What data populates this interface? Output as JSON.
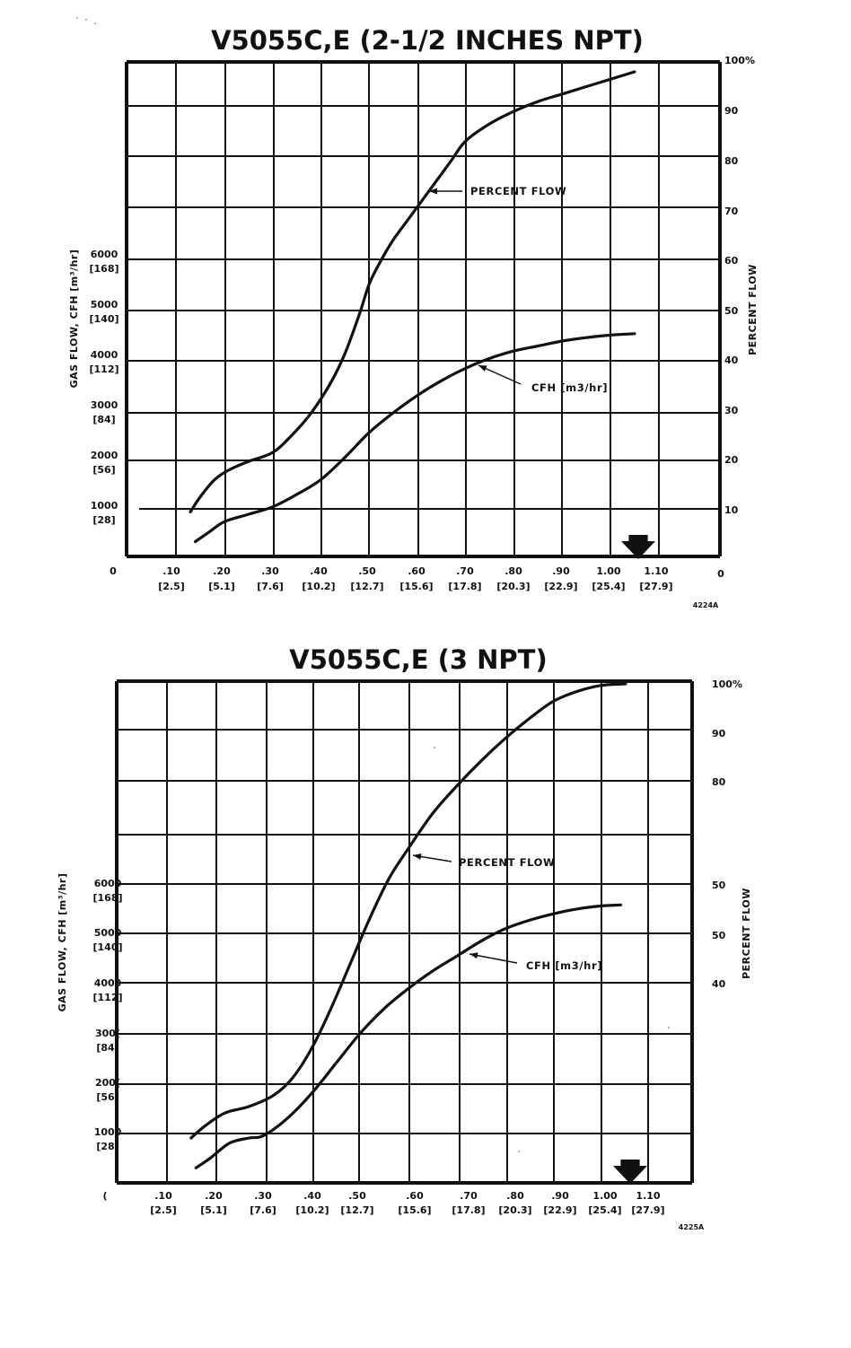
{
  "chart_data": [
    {
      "type": "line",
      "title": "V5055C,E (2-1/2 INCHES NPT)",
      "left_ylabel": "GAS FLOW, CFH [m³/hr]",
      "right_ylabel": "PERCENT FLOW",
      "x_ticks": [
        {
          "top": "0",
          "bottom": ""
        },
        {
          "top": ".10",
          "bottom": "[2.5]"
        },
        {
          "top": ".20",
          "bottom": "[5.1]"
        },
        {
          "top": ".30",
          "bottom": "[7.6]"
        },
        {
          "top": ".40",
          "bottom": "[10.2]"
        },
        {
          "top": ".50",
          "bottom": "[12.7]"
        },
        {
          "top": ".60",
          "bottom": "[15.6]"
        },
        {
          "top": ".70",
          "bottom": "[17.8]"
        },
        {
          "top": ".80",
          "bottom": "[20.3]"
        },
        {
          "top": ".90",
          "bottom": "[22.9]"
        },
        {
          "top": "1.00",
          "bottom": "[25.4]"
        },
        {
          "top": "1.10",
          "bottom": "[27.9]"
        }
      ],
      "left_ticks": [
        {
          "top": "1000",
          "bottom": "[28]"
        },
        {
          "top": "2000",
          "bottom": "[56]"
        },
        {
          "top": "3000",
          "bottom": "[84]"
        },
        {
          "top": "4000",
          "bottom": "[112]"
        },
        {
          "top": "5000",
          "bottom": "[140]"
        },
        {
          "top": "6000",
          "bottom": "[168]"
        }
      ],
      "right_ticks": [
        "0",
        "10",
        "20",
        "30",
        "40",
        "50",
        "60",
        "70",
        "80",
        "90",
        "100%"
      ],
      "xlim": [
        0,
        1.2
      ],
      "series": [
        {
          "name": "PERCENT FLOW",
          "axis": "right",
          "x": [
            0.13,
            0.15,
            0.18,
            0.21,
            0.25,
            0.3,
            0.34,
            0.38,
            0.42,
            0.45,
            0.48,
            0.5,
            0.52,
            0.55,
            0.58,
            0.61,
            0.64,
            0.67,
            0.7,
            0.75,
            0.8,
            0.85,
            0.9,
            0.95,
            1.0,
            1.05
          ],
          "y": [
            9,
            12,
            15.5,
            17.5,
            19.2,
            21,
            24.5,
            29,
            35,
            41,
            49,
            55,
            59,
            64,
            68,
            72,
            76,
            80,
            84,
            87.5,
            90,
            92,
            93.5,
            95,
            96.5,
            98
          ]
        },
        {
          "name": "CFH [m3/hr]",
          "axis": "left",
          "x": [
            0.14,
            0.17,
            0.2,
            0.25,
            0.3,
            0.35,
            0.4,
            0.45,
            0.5,
            0.55,
            0.6,
            0.65,
            0.7,
            0.75,
            0.8,
            0.85,
            0.9,
            0.95,
            1.0,
            1.05
          ],
          "y": [
            300,
            500,
            700,
            850,
            1000,
            1250,
            1550,
            2000,
            2500,
            2900,
            3250,
            3550,
            3800,
            4000,
            4150,
            4250,
            4350,
            4420,
            4470,
            4500
          ]
        }
      ],
      "annotations": [
        {
          "text": "PERCENT FLOW",
          "x": 0.61,
          "y": 74,
          "axis": "right"
        },
        {
          "text": "CFH [m3/hr]",
          "x": 0.74,
          "y": 3900,
          "axis": "left"
        }
      ],
      "marker": "arrow at 1.05",
      "figure_code": "4224A",
      "grid": true
    },
    {
      "type": "line",
      "title": "V5055C,E (3 NPT)",
      "left_ylabel": "GAS FLOW, CFH [m³/hr]",
      "right_ylabel": "PERCENT FLOW",
      "x_ticks": [
        {
          "top": "(",
          "bottom": ""
        },
        {
          "top": ".10",
          "bottom": "[2.5]"
        },
        {
          "top": ".20",
          "bottom": "[5.1]"
        },
        {
          "top": ".30",
          "bottom": "[7.6]"
        },
        {
          "top": ".40",
          "bottom": "[10.2]"
        },
        {
          "top": ".50",
          "bottom": "[12.7]"
        },
        {
          "top": ".60",
          "bottom": "[15.6]"
        },
        {
          "top": ".70",
          "bottom": "[17.8]"
        },
        {
          "top": ".80",
          "bottom": "[20.3]"
        },
        {
          "top": ".90",
          "bottom": "[22.9]"
        },
        {
          "top": "1.00",
          "bottom": "[25.4]"
        },
        {
          "top": "1.10",
          "bottom": "[27.9]"
        }
      ],
      "left_ticks": [
        {
          "top": "1000",
          "bottom": "[28]"
        },
        {
          "top": "200(",
          "bottom": "[56]"
        },
        {
          "top": "300(",
          "bottom": "[84]"
        },
        {
          "top": "4000",
          "bottom": "[112]"
        },
        {
          "top": "5000",
          "bottom": "[140]"
        },
        {
          "top": "6000",
          "bottom": "[168]"
        }
      ],
      "right_ticks": [
        "40",
        "50",
        "50",
        "80",
        "90",
        "100%"
      ],
      "xlim": [
        0,
        1.2
      ],
      "series": [
        {
          "name": "PERCENT FLOW",
          "axis": "right",
          "x": [
            0.15,
            0.18,
            0.22,
            0.27,
            0.32,
            0.36,
            0.4,
            0.44,
            0.48,
            0.52,
            0.56,
            0.6,
            0.65,
            0.7,
            0.75,
            0.8,
            0.85,
            0.9,
            0.95,
            1.0,
            1.05
          ],
          "y": [
            9,
            11.5,
            14,
            15.3,
            17.5,
            21,
            27,
            35,
            44,
            53,
            61,
            67,
            74,
            79.5,
            84.5,
            89,
            93,
            96.5,
            98.5,
            99.7,
            100
          ]
        },
        {
          "name": "CFH [m3/hr]",
          "axis": "left",
          "x": [
            0.16,
            0.19,
            0.23,
            0.27,
            0.3,
            0.35,
            0.4,
            0.45,
            0.5,
            0.55,
            0.6,
            0.65,
            0.7,
            0.75,
            0.8,
            0.85,
            0.9,
            0.95,
            1.0,
            1.04
          ],
          "y": [
            300,
            500,
            800,
            900,
            950,
            1300,
            1800,
            2400,
            3000,
            3500,
            3900,
            4250,
            4550,
            4850,
            5100,
            5270,
            5400,
            5500,
            5560,
            5580
          ]
        }
      ],
      "annotations": [
        {
          "text": "PERCENT FLOW",
          "x": 0.6,
          "y": 66,
          "axis": "right"
        },
        {
          "text": "CFH [m3/hr]",
          "x": 0.71,
          "y": 4550,
          "axis": "left"
        }
      ],
      "marker": "arrow at 1.05",
      "figure_code": "4225A",
      "grid": true
    }
  ]
}
